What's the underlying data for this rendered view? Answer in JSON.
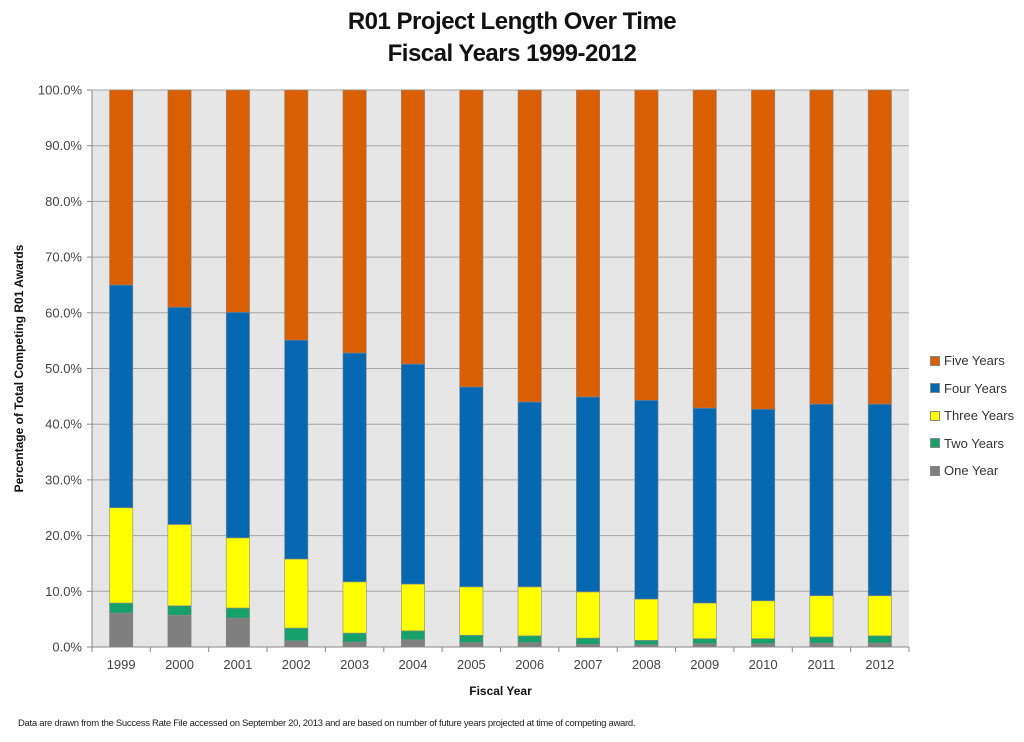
{
  "chart_data": {
    "type": "bar",
    "stacked": true,
    "title": "R01 Project Length Over Time",
    "subtitle": "Fiscal Years 1999-2012",
    "xlabel": "Fiscal Year",
    "ylabel": "Percentage of Total Competing R01 Awards",
    "ylim": [
      0,
      100
    ],
    "yticks": [
      "0.0%",
      "10.0%",
      "20.0%",
      "30.0%",
      "40.0%",
      "50.0%",
      "60.0%",
      "70.0%",
      "80.0%",
      "90.0%",
      "100.0%"
    ],
    "grid": true,
    "legend_position": "right",
    "categories": [
      "1999",
      "2000",
      "2001",
      "2002",
      "2003",
      "2004",
      "2005",
      "2006",
      "2007",
      "2008",
      "2009",
      "2010",
      "2011",
      "2012"
    ],
    "series": [
      {
        "name": "One Year",
        "color": "#7f7f7f",
        "values": [
          6.1,
          5.7,
          5.2,
          1.1,
          0.9,
          1.3,
          0.8,
          0.8,
          0.5,
          0.4,
          0.6,
          0.6,
          0.7,
          0.7
        ]
      },
      {
        "name": "Two Years",
        "color": "#16a06a",
        "values": [
          1.8,
          1.7,
          1.8,
          2.3,
          1.6,
          1.6,
          1.3,
          1.2,
          1.1,
          0.8,
          0.9,
          0.9,
          1.1,
          1.3
        ]
      },
      {
        "name": "Three Years",
        "color": "#ffff00",
        "values": [
          17.1,
          14.6,
          12.6,
          12.4,
          9.2,
          8.4,
          8.7,
          8.8,
          8.3,
          7.4,
          6.4,
          6.8,
          7.4,
          7.2
        ]
      },
      {
        "name": "Four Years",
        "color": "#0568b0",
        "values": [
          40.0,
          39.0,
          40.5,
          39.3,
          41.1,
          39.5,
          35.9,
          33.2,
          35.0,
          35.7,
          35.0,
          34.4,
          34.4,
          34.4
        ]
      },
      {
        "name": "Five Years",
        "color": "#d95f02",
        "values": [
          35.0,
          39.0,
          39.9,
          44.9,
          47.2,
          49.2,
          53.3,
          56.0,
          55.1,
          55.7,
          57.1,
          57.3,
          56.4,
          56.4
        ]
      }
    ],
    "legend_order": [
      "Five Years",
      "Four Years",
      "Three Years",
      "Two Years",
      "One Year"
    ]
  },
  "footnote": "Data are drawn from the Success Rate File accessed on September 20, 2013  and are based on number of future years projected at time of competing award."
}
